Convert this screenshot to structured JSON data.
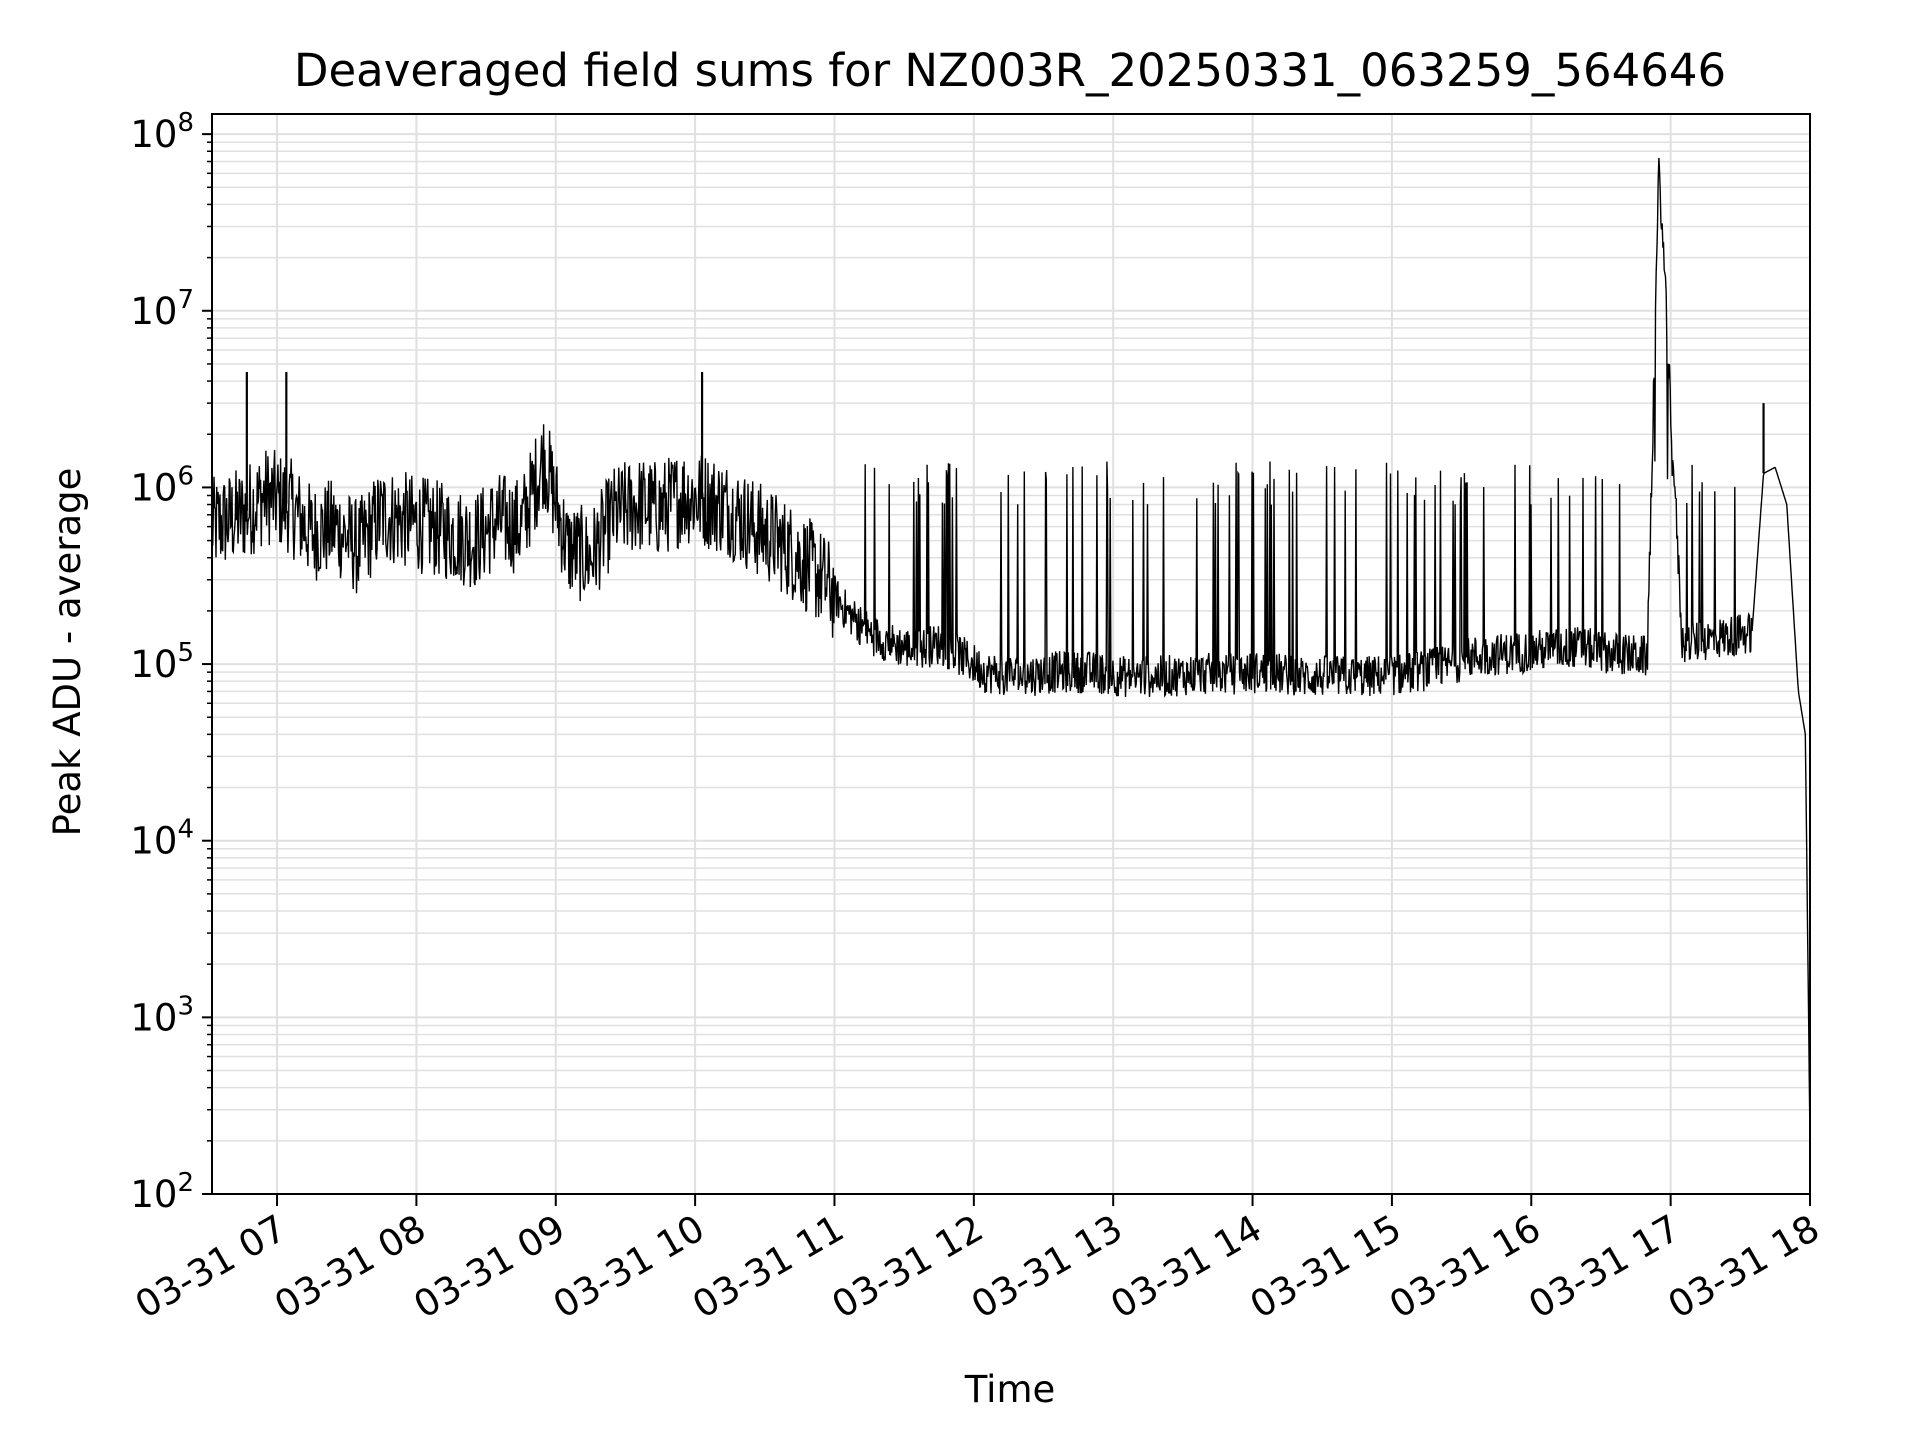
{
  "chart_data": {
    "type": "line",
    "title": "Deaveraged field sums for NZ003R_20250331_063259_564646",
    "xlabel": "Time",
    "ylabel": "Peak ADU - average",
    "y_scale": "log",
    "ylim": [
      100,
      130000000
    ],
    "xlim": [
      "03-31 06:32",
      "03-31 18:00"
    ],
    "grid": "on (major and minor)",
    "line_color": "#000000",
    "grid_color": "#e0e0e0",
    "x_ticks": [
      "03-31 07",
      "03-31 08",
      "03-31 09",
      "03-31 10",
      "03-31 11",
      "03-31 12",
      "03-31 13",
      "03-31 14",
      "03-31 15",
      "03-31 16",
      "03-31 17",
      "03-31 18"
    ],
    "y_ticks": [
      {
        "value": 100,
        "base": "10",
        "exp": "2"
      },
      {
        "value": 1000,
        "base": "10",
        "exp": "3"
      },
      {
        "value": 10000,
        "base": "10",
        "exp": "4"
      },
      {
        "value": 100000,
        "base": "10",
        "exp": "5"
      },
      {
        "value": 1000000,
        "base": "10",
        "exp": "6"
      },
      {
        "value": 10000000,
        "base": "10",
        "exp": "7"
      },
      {
        "value": 100000000,
        "base": "10",
        "exp": "8"
      }
    ],
    "series": [
      {
        "x": [
          "03-31 06:32",
          "03-31 06:45",
          "03-31 06:55",
          "03-31 07:05",
          "03-31 07:15",
          "03-31 07:25",
          "03-31 07:35",
          "03-31 07:45",
          "03-31 07:55",
          "03-31 08:05",
          "03-31 08:15",
          "03-31 08:25",
          "03-31 08:35",
          "03-31 08:45",
          "03-31 08:55",
          "03-31 09:05",
          "03-31 09:15",
          "03-31 09:25",
          "03-31 09:35",
          "03-31 09:45",
          "03-31 09:55",
          "03-31 10:05",
          "03-31 10:15",
          "03-31 10:25",
          "03-31 10:35",
          "03-31 10:45",
          "03-31 10:55",
          "03-31 11:05",
          "03-31 11:15",
          "03-31 11:25",
          "03-31 11:35",
          "03-31 11:45",
          "03-31 11:55",
          "03-31 12:05",
          "03-31 12:20",
          "03-31 12:35",
          "03-31 12:50",
          "03-31 13:05",
          "03-31 13:20",
          "03-31 13:35",
          "03-31 13:50",
          "03-31 14:05",
          "03-31 14:20",
          "03-31 14:35",
          "03-31 14:50",
          "03-31 15:05",
          "03-31 15:20",
          "03-31 15:35",
          "03-31 15:50",
          "03-31 16:05",
          "03-31 16:20",
          "03-31 16:35",
          "03-31 16:50",
          "03-31 16:55",
          "03-31 17:05",
          "03-31 17:20",
          "03-31 17:35",
          "03-31 17:40",
          "03-31 17:45",
          "03-31 17:50",
          "03-31 17:55",
          "03-31 17:58",
          "03-31 18:00"
        ],
        "y": [
          600000,
          700000,
          900000,
          800000,
          550000,
          600000,
          450000,
          700000,
          650000,
          600000,
          550000,
          500000,
          650000,
          600000,
          1500000,
          450000,
          400000,
          700000,
          800000,
          750000,
          900000,
          850000,
          750000,
          600000,
          500000,
          400000,
          300000,
          200000,
          150000,
          130000,
          120000,
          130000,
          110000,
          90000,
          85000,
          90000,
          90000,
          85000,
          85000,
          88000,
          88000,
          90000,
          85000,
          85000,
          85000,
          88000,
          95000,
          110000,
          115000,
          120000,
          125000,
          115000,
          110000,
          68000000,
          130000,
          140000,
          150000,
          1200000,
          1300000,
          800000,
          70000,
          40000,
          200
        ]
      }
    ],
    "spikes": [
      {
        "x": "03-31 06:47",
        "y": 4500000
      },
      {
        "x": "03-31 07:04",
        "y": 4500000
      },
      {
        "x": "03-31 10:03",
        "y": 4500000
      },
      {
        "x": "03-31 16:55",
        "y": 68000000
      },
      {
        "x": "03-31 17:40",
        "y": 3000000
      }
    ]
  }
}
